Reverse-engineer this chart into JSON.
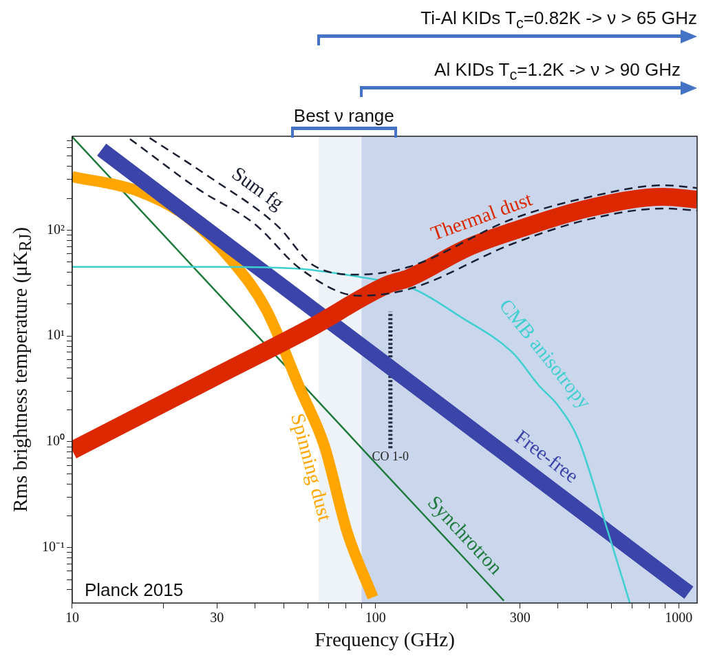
{
  "chart_data": {
    "type": "line",
    "xlabel": "Frequency (GHz)",
    "ylabel": "Rms brightness temperature (μK$_{RJ}$)",
    "log": "xy",
    "xlim": [
      10,
      1150
    ],
    "xticks": [
      10,
      {
        "value": 20,
        "label": null
      },
      30,
      {
        "value": 40,
        "label": null
      },
      {
        "value": 50,
        "label": null
      },
      {
        "value": 60,
        "label": null
      },
      {
        "value": 70,
        "label": null
      },
      {
        "value": 80,
        "label": null
      },
      {
        "value": 90,
        "label": null
      },
      100,
      {
        "value": 200,
        "label": null
      },
      300,
      {
        "value": 400,
        "label": null
      },
      {
        "value": 500,
        "label": null
      },
      {
        "value": 600,
        "label": null
      },
      {
        "value": 700,
        "label": null
      },
      {
        "value": 800,
        "label": null
      },
      {
        "value": 900,
        "label": null
      },
      1000
    ],
    "ylim": [
      0.03,
      770
    ],
    "yticks": [
      {
        "value": 0.04,
        "label": null
      },
      {
        "value": 0.05,
        "label": null
      },
      {
        "value": 0.06,
        "label": null
      },
      {
        "value": 0.07,
        "label": null
      },
      {
        "value": 0.08,
        "label": null
      },
      {
        "value": 0.09,
        "label": null
      },
      {
        "value": 0.1,
        "label": "10⁻¹"
      },
      {
        "value": 0.2,
        "label": null
      },
      {
        "value": 0.3,
        "label": null
      },
      {
        "value": 0.4,
        "label": null
      },
      {
        "value": 0.5,
        "label": null
      },
      {
        "value": 0.6,
        "label": null
      },
      {
        "value": 0.7,
        "label": null
      },
      {
        "value": 0.8,
        "label": null
      },
      {
        "value": 0.9,
        "label": null
      },
      {
        "value": 1,
        "label": "10⁰"
      },
      {
        "value": 2,
        "label": null
      },
      {
        "value": 3,
        "label": null
      },
      {
        "value": 4,
        "label": null
      },
      {
        "value": 5,
        "label": null
      },
      {
        "value": 6,
        "label": null
      },
      {
        "value": 7,
        "label": null
      },
      {
        "value": 8,
        "label": null
      },
      {
        "value": 9,
        "label": null
      },
      {
        "value": 10,
        "label": "10¹"
      },
      {
        "value": 20,
        "label": null
      },
      {
        "value": 30,
        "label": null
      },
      {
        "value": 40,
        "label": null
      },
      {
        "value": 50,
        "label": null
      },
      {
        "value": 60,
        "label": null
      },
      {
        "value": 70,
        "label": null
      },
      {
        "value": 80,
        "label": null
      },
      {
        "value": 90,
        "label": null
      },
      {
        "value": 100,
        "label": "10²"
      },
      {
        "value": 200,
        "label": null
      },
      {
        "value": 300,
        "label": null
      },
      {
        "value": 400,
        "label": null
      },
      {
        "value": 500,
        "label": null
      },
      {
        "value": 600,
        "label": null
      },
      {
        "value": 700,
        "label": null
      }
    ],
    "bands": [
      {
        "axis": "x",
        "from": 65,
        "to": 1150,
        "color": "#eef3f9"
      },
      {
        "axis": "x",
        "from": 90,
        "to": 1150,
        "color": "#c9d6ec"
      }
    ],
    "series": [
      {
        "name": "Sum fg",
        "color": "#1a1f33",
        "line_style": "dashed",
        "x": [
          18,
          28.2,
          47.6,
          62,
          88,
          129,
          284,
          509,
          890,
          1150
        ],
        "values": [
          743,
          321,
          109,
          47,
          38,
          45,
          128,
          206,
          265,
          250
        ]
      },
      {
        "color": "#1a1f33",
        "line_style": "dashed",
        "x": [
          15.5,
          26.3,
          40,
          56.6,
          88,
          129,
          284,
          509,
          890,
          1150
        ],
        "values": [
          726,
          239,
          114,
          43,
          24,
          27.7,
          74.5,
          127,
          160,
          153
        ]
      },
      {
        "name": "Thermal dust",
        "color": "#dc2800",
        "x": [
          10,
          30,
          60,
          110,
          129,
          200,
          284,
          509,
          890,
          1150
        ],
        "values": [
          0.83,
          4.2,
          11.6,
          30.6,
          35.3,
          67.8,
          97.7,
          162,
          206,
          194
        ]
      },
      {
        "name": "CMB anisotropy",
        "color": "#3ecfd0",
        "x": [
          10,
          30,
          57,
          70,
          89,
          129,
          192,
          284,
          346,
          400,
          467,
          582,
          690
        ],
        "values": [
          45,
          45,
          43,
          40,
          36,
          29,
          15,
          6.9,
          3.4,
          2.2,
          1.05,
          0.147,
          0.03
        ]
      },
      {
        "name": "Free-free",
        "color": "#3b44a8",
        "x": [
          12.5,
          30,
          100,
          300,
          1000,
          1080
        ],
        "values": [
          575,
          86.6,
          6.43,
          0.598,
          0.0443,
          0.0376
        ]
      },
      {
        "name": "Spinning dust",
        "color": "#ffa500",
        "x": [
          10,
          16.6,
          23.7,
          33.5,
          43.6,
          56.6,
          67.7,
          80.7,
          98
        ],
        "values": [
          320,
          232,
          136,
          52,
          17.8,
          3.1,
          0.93,
          0.14,
          0.034
        ]
      },
      {
        "name": "Synchrotron",
        "color": "#1e7b3c",
        "x": [
          10,
          20,
          30,
          50,
          100,
          200,
          265
        ],
        "values": [
          760,
          90,
          25.8,
          5.35,
          0.63,
          0.075,
          0.0315
        ]
      },
      {
        "color": "#1f2a44",
        "line_style": "dotted",
        "x": [
          112,
          112
        ],
        "values": [
          0.87,
          17
        ]
      }
    ],
    "annotations": [
      "Ti-Al KIDs T$_{c}$=0.82K -> ν > 65 GHz",
      "Al KIDs T$_{c}$=1.2K -> ν > 90 GHz",
      "Best ν range",
      "Planck 2015",
      {
        "text": "CO 1-0",
        "x": 112,
        "y": 0.87
      }
    ]
  }
}
